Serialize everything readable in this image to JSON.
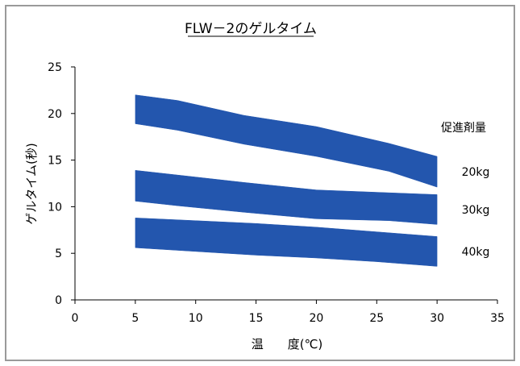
{
  "chart_data": {
    "type": "area",
    "title": "FLW－2のゲルタイム",
    "xlabel": "温　　度(℃)",
    "ylabel": "ゲルタイム(秒)",
    "xlim": [
      0,
      35
    ],
    "ylim": [
      0,
      25
    ],
    "xticks": [
      "0",
      "5",
      "10",
      "15",
      "20",
      "25",
      "30",
      "35"
    ],
    "yticks": [
      "0",
      "5",
      "10",
      "15",
      "20",
      "25"
    ],
    "legend_title": "促進剤量",
    "grid": false,
    "band_color": "#2356AE",
    "series": [
      {
        "name": "20kg",
        "x": [
          5,
          8.5,
          14,
          20,
          26,
          30
        ],
        "upper": [
          22.0,
          21.4,
          19.8,
          18.6,
          16.8,
          15.4
        ],
        "lower": [
          18.9,
          18.2,
          16.7,
          15.4,
          13.8,
          12.1
        ]
      },
      {
        "name": "30kg",
        "x": [
          5,
          8.5,
          14,
          20,
          26,
          30
        ],
        "upper": [
          13.9,
          13.4,
          12.6,
          11.8,
          11.5,
          11.3
        ],
        "lower": [
          10.6,
          10.1,
          9.4,
          8.7,
          8.5,
          8.1
        ]
      },
      {
        "name": "40kg",
        "x": [
          5,
          10,
          15,
          20,
          25,
          30
        ],
        "upper": [
          8.8,
          8.5,
          8.2,
          7.8,
          7.3,
          6.8
        ],
        "lower": [
          5.6,
          5.2,
          4.8,
          4.5,
          4.1,
          3.6
        ]
      }
    ]
  }
}
